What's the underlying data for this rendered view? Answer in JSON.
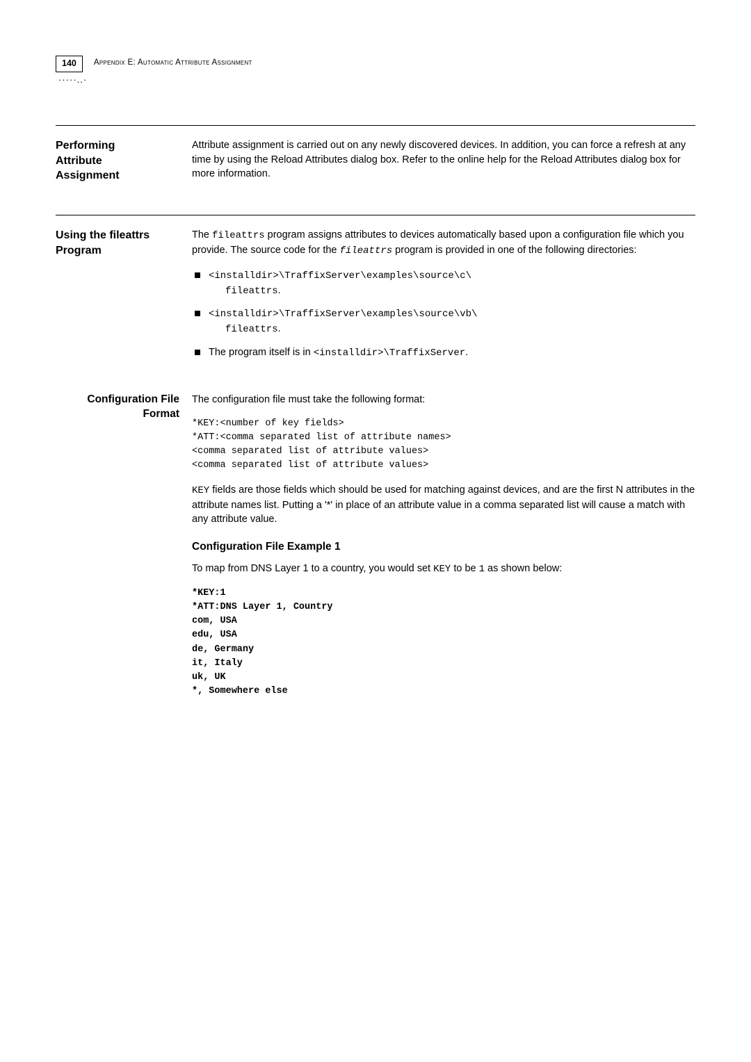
{
  "header": {
    "page_number": "140",
    "running_head": "Appendix E: Automatic Attribute Assignment"
  },
  "sections": {
    "performing": {
      "title_l1": "Performing",
      "title_l2": "Attribute",
      "title_l3": "Assignment",
      "body": "Attribute assignment is carried out on any newly discovered devices. In addition, you can force a refresh at any time by using the Reload Attributes dialog box. Refer to the online help for the Reload Attributes dialog box for more information."
    },
    "fileattrs": {
      "title_l1": "Using the fileattrs",
      "title_l2": "Program",
      "intro_a": "The ",
      "intro_b": "fileattrs",
      "intro_c": " program assigns attributes to devices automatically based upon a configuration file which you provide. The source code for the ",
      "intro_d": "fileattrs",
      "intro_e": " program is provided in one of the following directories:",
      "bullets": {
        "b1_l1": "<installdir>\\TraffixServer\\examples\\source\\c\\",
        "b1_l2": "fileattrs",
        "b1_l3": ".",
        "b2_l1": "<installdir>\\TraffixServer\\examples\\source\\vb\\",
        "b2_l2": "fileattrs",
        "b2_l3": ".",
        "b3_a": "The program itself is in ",
        "b3_b": "<installdir>\\TraffixServer",
        "b3_c": "."
      }
    },
    "config_format": {
      "title_l1": "Configuration File",
      "title_l2": "Format",
      "intro": "The configuration file must take the following format:",
      "code": "*KEY:<number of key fields>\n*ATT:<comma separated list of attribute names>\n<comma separated list of attribute values>\n<comma separated list of attribute values>",
      "key_para_a": "KEY",
      "key_para_b": " fields are those fields which should be used for matching against devices, and are the first N attributes in the attribute names list. Putting a '*' in place of an attribute value in a comma separated list will cause a match with any attribute value.",
      "example1_heading": "Configuration File Example 1",
      "example1_a": "To map from DNS Layer 1 to a country, you would set ",
      "example1_b": "KEY",
      "example1_c": " to be ",
      "example1_d": "1",
      "example1_e": "  as shown below:",
      "example1_code": "*KEY:1\n*ATT:DNS Layer 1, Country\ncom, USA\nedu, USA\nde, Germany\nit, Italy\nuk, UK\n*, Somewhere else"
    }
  }
}
